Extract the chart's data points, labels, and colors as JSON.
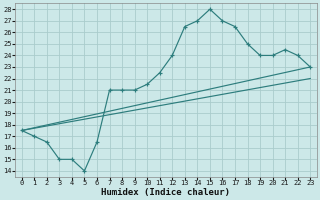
{
  "xlabel": "Humidex (Indice chaleur)",
  "bg_color": "#cce8e8",
  "grid_color": "#aacccc",
  "line_color": "#2d7d7d",
  "xlim": [
    -0.5,
    23.5
  ],
  "ylim": [
    13.5,
    28.5
  ],
  "xticks": [
    0,
    1,
    2,
    3,
    4,
    5,
    6,
    7,
    8,
    9,
    10,
    11,
    12,
    13,
    14,
    15,
    16,
    17,
    18,
    19,
    20,
    21,
    22,
    23
  ],
  "yticks": [
    14,
    15,
    16,
    17,
    18,
    19,
    20,
    21,
    22,
    23,
    24,
    25,
    26,
    27,
    28
  ],
  "line1_x": [
    0,
    1,
    2,
    3,
    4,
    5,
    6,
    7,
    8,
    9,
    10,
    11,
    12,
    13,
    14,
    15,
    16,
    17,
    18,
    19,
    20,
    21,
    22,
    23
  ],
  "line1_y": [
    17.5,
    17.0,
    16.5,
    15.0,
    15.0,
    14.0,
    16.5,
    21.0,
    21.0,
    21.0,
    21.5,
    22.5,
    24.0,
    26.5,
    27.0,
    28.0,
    27.0,
    26.5,
    25.0,
    24.0,
    24.0,
    24.5,
    24.0,
    23.0
  ],
  "line2_x": [
    0,
    23
  ],
  "line2_y": [
    17.5,
    23.0
  ],
  "line3_x": [
    0,
    23
  ],
  "line3_y": [
    17.5,
    22.0
  ],
  "xlabel_fontsize": 6.5,
  "tick_fontsize": 5.0,
  "linewidth": 0.85
}
